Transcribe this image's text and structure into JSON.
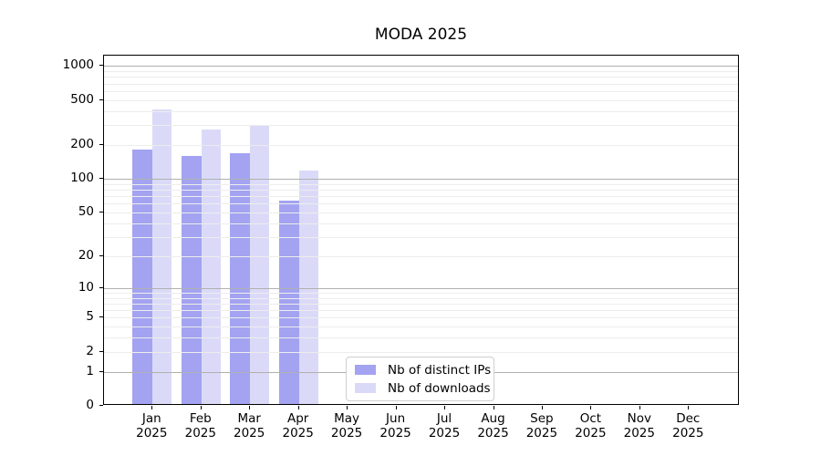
{
  "chart_data": {
    "type": "bar",
    "title": "MODA 2025",
    "xlabel": "",
    "ylabel": "",
    "x_tick_labels": [
      [
        "Jan",
        "2025"
      ],
      [
        "Feb",
        "2025"
      ],
      [
        "Mar",
        "2025"
      ],
      [
        "Apr",
        "2025"
      ],
      [
        "May",
        "2025"
      ],
      [
        "Jun",
        "2025"
      ],
      [
        "Jul",
        "2025"
      ],
      [
        "Aug",
        "2025"
      ],
      [
        "Sep",
        "2025"
      ],
      [
        "Oct",
        "2025"
      ],
      [
        "Nov",
        "2025"
      ],
      [
        "Dec",
        "2025"
      ]
    ],
    "series": [
      {
        "name": "Nb of distinct IPs",
        "color": "#a3a3f1",
        "values": [
          175,
          153,
          163,
          62,
          null,
          null,
          null,
          null,
          null,
          null,
          null,
          null
        ]
      },
      {
        "name": "Nb of downloads",
        "color": "#dadaf8",
        "values": [
          395,
          265,
          290,
          115,
          null,
          null,
          null,
          null,
          null,
          null,
          null,
          null
        ]
      }
    ],
    "y_scale": "log1p",
    "ylim": [
      0,
      1236
    ],
    "y_ticks": [
      0,
      1,
      2,
      5,
      10,
      20,
      50,
      100,
      200,
      500,
      1000
    ],
    "y_major_gridlines": [
      1,
      10,
      100,
      1000
    ],
    "y_minor_gridlines": [
      2,
      3,
      4,
      5,
      6,
      7,
      8,
      9,
      20,
      30,
      40,
      50,
      60,
      70,
      80,
      90,
      200,
      300,
      400,
      500,
      600,
      700,
      800,
      900
    ],
    "grid": "horizontal",
    "legend": {
      "position": "lower-center"
    },
    "colors": {
      "major_grid": "#b0b0b0",
      "minor_grid": "#ededed",
      "spine": "#000000",
      "text": "#000000",
      "background": "#ffffff"
    }
  }
}
